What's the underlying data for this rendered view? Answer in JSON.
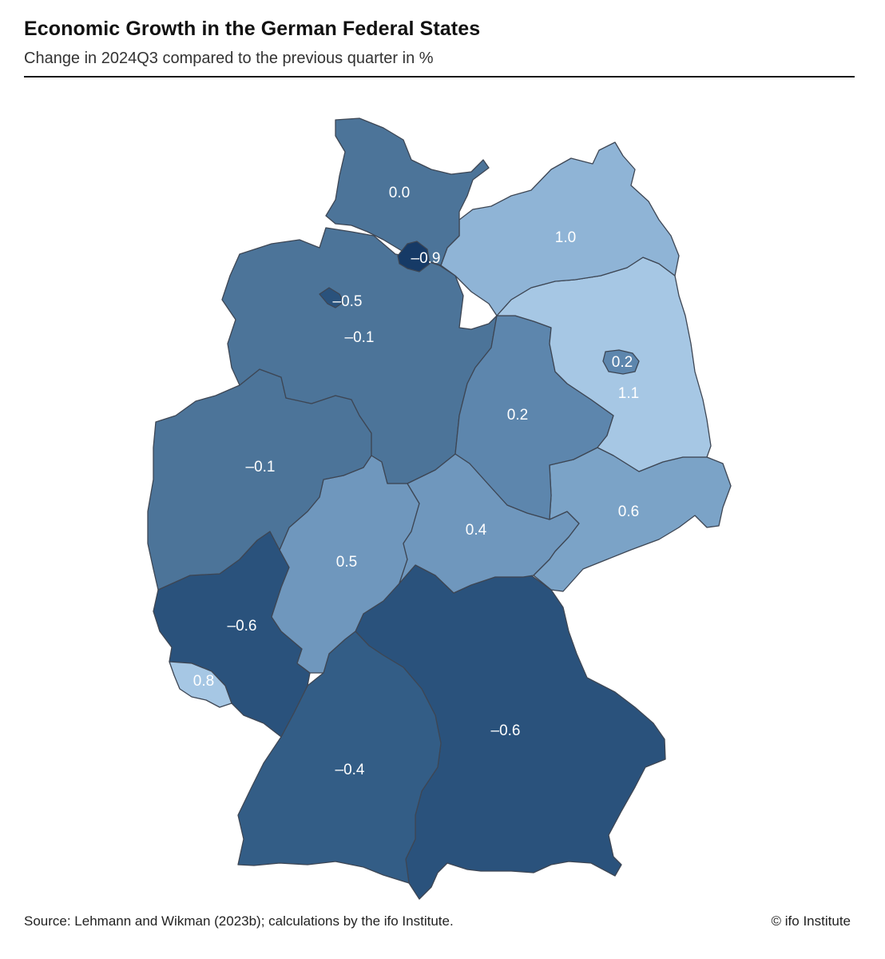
{
  "title": "Economic Growth in the German Federal States",
  "subtitle": "Change in 2024Q3 compared to the previous quarter in %",
  "source": "Source: Lehmann and Wikman (2023b); calculations by the ifo Institute.",
  "copyright": "© ifo Institute",
  "colors": {
    "darkest": "#163a66",
    "dark": "#2a527c",
    "dark_mid": "#335d86",
    "mid": "#4c7499",
    "mid_light": "#5d86ad",
    "light_mid": "#7ba3c7",
    "light": "#8fb4d6",
    "lightest": "#a6c7e4",
    "border": "#3d4654"
  },
  "states": [
    {
      "id": "schleswig-holstein",
      "value": "0.0"
    },
    {
      "id": "hamburg",
      "value": "–0.9"
    },
    {
      "id": "mecklenburg-vorpommern",
      "value": "1.0"
    },
    {
      "id": "bremen",
      "value": "–0.5"
    },
    {
      "id": "niedersachsen",
      "value": "–0.1"
    },
    {
      "id": "berlin",
      "value": "0.2"
    },
    {
      "id": "brandenburg",
      "value": "1.1"
    },
    {
      "id": "sachsen-anhalt",
      "value": "0.2"
    },
    {
      "id": "nordrhein-westfalen",
      "value": "–0.1"
    },
    {
      "id": "sachsen",
      "value": "0.6"
    },
    {
      "id": "thueringen",
      "value": "0.4"
    },
    {
      "id": "hessen",
      "value": "0.5"
    },
    {
      "id": "rheinland-pfalz",
      "value": "–0.6"
    },
    {
      "id": "saarland",
      "value": "0.8"
    },
    {
      "id": "bayern",
      "value": "–0.6"
    },
    {
      "id": "baden-wuerttemberg",
      "value": "–0.4"
    }
  ]
}
